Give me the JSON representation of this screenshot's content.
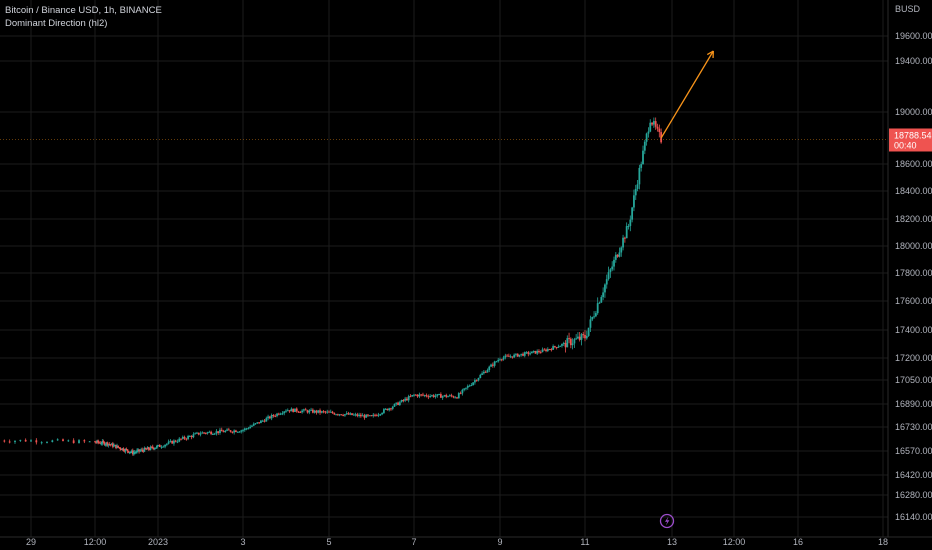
{
  "legend": {
    "symbol": "Bitcoin / Binance USD, 1h, BINANCE",
    "indicator": "Dominant Direction (hl2)"
  },
  "currency": "BUSD",
  "last_price": {
    "value": "18788.54",
    "countdown": "00:40"
  },
  "icons": {
    "bottom": "lightning-icon"
  },
  "colors": {
    "background": "#000000",
    "up": "#26a69a",
    "down": "#ef5350",
    "arrow": "#f7931a",
    "grid": "#1c1c1c",
    "price_label": "#ef5350",
    "lightning": "#9c4dcc"
  },
  "chart_data": {
    "type": "candlestick",
    "interval": "1h",
    "y_ticks": [
      19600,
      19400,
      19000,
      18600,
      18400,
      18200,
      18000,
      17800,
      17600,
      17400,
      17200,
      17050,
      16890,
      16730,
      16570,
      16420,
      16280,
      16140
    ],
    "x_ticks": [
      "29",
      "12:00",
      "2023",
      "3",
      "5",
      "7",
      "9",
      "11",
      "13",
      "12:00",
      "16",
      "18"
    ],
    "grid": true,
    "price_trend": [
      {
        "date": "2022-12-29 00:00",
        "close": 16640
      },
      {
        "date": "2022-12-30 00:00",
        "close": 16620
      },
      {
        "date": "2022-12-31 00:00",
        "close": 16560
      },
      {
        "date": "2023-01-01 00:00",
        "close": 16600
      },
      {
        "date": "2023-01-02 00:00",
        "close": 16690
      },
      {
        "date": "2023-01-03 00:00",
        "close": 16710
      },
      {
        "date": "2023-01-04 00:00",
        "close": 16850
      },
      {
        "date": "2023-01-05 00:00",
        "close": 16830
      },
      {
        "date": "2023-01-06 00:00",
        "close": 16800
      },
      {
        "date": "2023-01-07 00:00",
        "close": 16950
      },
      {
        "date": "2023-01-08 00:00",
        "close": 16940
      },
      {
        "date": "2023-01-09 00:00",
        "close": 17200
      },
      {
        "date": "2023-01-10 00:00",
        "close": 17250
      },
      {
        "date": "2023-01-11 00:00",
        "close": 17350
      },
      {
        "date": "2023-01-12 00:00",
        "close": 18150
      },
      {
        "date": "2023-01-12 12:00",
        "close": 18950
      },
      {
        "date": "2023-01-12 18:00",
        "close": 18788.54
      }
    ],
    "trend_arrow": {
      "from": {
        "date": "2023-01-12 18:00",
        "price": 18800
      },
      "to": {
        "date": "2023-01-14 00:00",
        "price": 19480
      }
    }
  }
}
